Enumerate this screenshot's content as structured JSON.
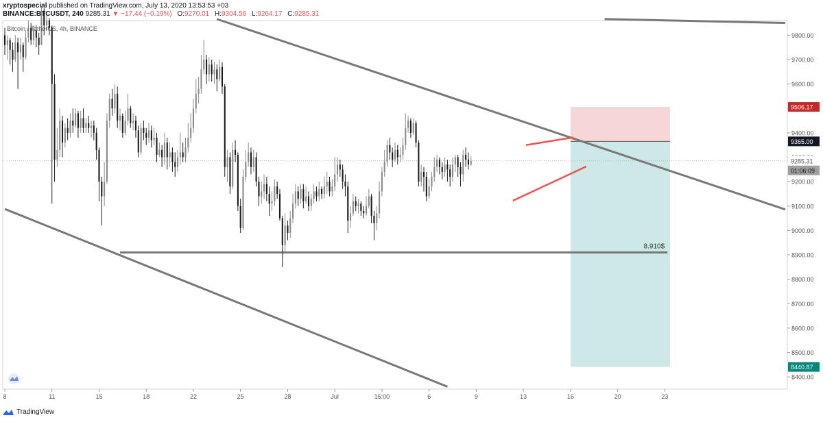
{
  "header": {
    "author": "xryptospecial",
    "published": "published on TradingView.com, July 13, 2020 13:53:53 +03",
    "symbol": "BINANCE:BTCUSDT, 240",
    "price": "9285.31",
    "change": "−17.44 (−0.19%)",
    "o_label": "O:",
    "o_value": "9270.01",
    "h_label": "H:",
    "h_value": "9304.56",
    "l_label": "L:",
    "l_value": "9264.17",
    "c_label": "C:",
    "c_value": "9285.31"
  },
  "footer": {
    "brand": "TradingView"
  },
  "colors": {
    "up": "#8a8a8a",
    "down": "#1c1c1c",
    "trendline": "#787878",
    "wedge": "#ef5350",
    "stop_zone": "#f7d6d8",
    "target_zone": "#cce9e8",
    "stop_badge": "#c62828",
    "target_badge": "#00897b",
    "current_badge": "#9e9e9e"
  },
  "chart_data": {
    "type": "candlestick",
    "title": "Bitcoin / TetherUS, 4h, BINANCE",
    "y_range": [
      8350,
      9860
    ],
    "y_ticks": [
      9800,
      9700,
      9600,
      9500,
      9400,
      9300,
      9200,
      9100,
      9000,
      8900,
      8800,
      8700,
      8600,
      8500,
      8400
    ],
    "y_tick_labels": [
      "9800.00",
      "9700.00",
      "9600.00",
      "9500.00",
      "9400.00",
      "9300.00",
      "9200.00",
      "9100.00",
      "9000.00",
      "8900.00",
      "8800.00",
      "8700.00",
      "8600.00",
      "8500.00",
      "8400.00"
    ],
    "x_tick_labels": [
      "8",
      "11",
      "15",
      "18",
      "22",
      "25",
      "28",
      "Jul",
      "15:00",
      "6",
      "9",
      "13",
      "16",
      "20",
      "23"
    ],
    "price_labels": {
      "stop": "9506.17",
      "entry": "9365.00",
      "current": "9285.31",
      "countdown": "01:06:09",
      "target": "8440.87",
      "support_label": "8.910$"
    },
    "levels": {
      "stop": 9506.17,
      "entry": 9365.0,
      "target": 8440.87,
      "support": 8910,
      "current": 9285.31
    },
    "candles": [
      {
        "o": 9800,
        "c": 9760,
        "h": 9830,
        "l": 9720
      },
      {
        "o": 9760,
        "c": 9780,
        "h": 9800,
        "l": 9700
      },
      {
        "o": 9780,
        "c": 9740,
        "h": 9790,
        "l": 9680
      },
      {
        "o": 9740,
        "c": 9700,
        "h": 9770,
        "l": 9650
      },
      {
        "o": 9700,
        "c": 9770,
        "h": 9800,
        "l": 9690
      },
      {
        "o": 9770,
        "c": 9730,
        "h": 9790,
        "l": 9580
      },
      {
        "o": 9730,
        "c": 9760,
        "h": 9790,
        "l": 9700
      },
      {
        "o": 9760,
        "c": 9710,
        "h": 9770,
        "l": 9650
      },
      {
        "o": 9710,
        "c": 9790,
        "h": 9820,
        "l": 9700
      },
      {
        "o": 9790,
        "c": 9830,
        "h": 9860,
        "l": 9770
      },
      {
        "o": 9830,
        "c": 9780,
        "h": 9850,
        "l": 9760
      },
      {
        "o": 9780,
        "c": 9820,
        "h": 9840,
        "l": 9760
      },
      {
        "o": 9820,
        "c": 9790,
        "h": 9840,
        "l": 9750
      },
      {
        "o": 9790,
        "c": 9760,
        "h": 9810,
        "l": 9720
      },
      {
        "o": 9760,
        "c": 9900,
        "h": 9920,
        "l": 9760
      },
      {
        "o": 9900,
        "c": 9840,
        "h": 9910,
        "l": 9800
      },
      {
        "o": 9840,
        "c": 9860,
        "h": 9880,
        "l": 9820
      },
      {
        "o": 9860,
        "c": 9830,
        "h": 9870,
        "l": 9800
      },
      {
        "o": 9830,
        "c": 9600,
        "h": 9840,
        "l": 9110
      },
      {
        "o": 9600,
        "c": 9290,
        "h": 9640,
        "l": 9200
      },
      {
        "o": 9290,
        "c": 9330,
        "h": 9420,
        "l": 9260
      },
      {
        "o": 9330,
        "c": 9450,
        "h": 9500,
        "l": 9300
      },
      {
        "o": 9450,
        "c": 9360,
        "h": 9470,
        "l": 9300
      },
      {
        "o": 9360,
        "c": 9420,
        "h": 9440,
        "l": 9340
      },
      {
        "o": 9420,
        "c": 9400,
        "h": 9460,
        "l": 9370
      },
      {
        "o": 9400,
        "c": 9450,
        "h": 9480,
        "l": 9380
      },
      {
        "o": 9450,
        "c": 9430,
        "h": 9500,
        "l": 9400
      },
      {
        "o": 9430,
        "c": 9480,
        "h": 9500,
        "l": 9420
      },
      {
        "o": 9480,
        "c": 9420,
        "h": 9490,
        "l": 9380
      },
      {
        "o": 9420,
        "c": 9460,
        "h": 9490,
        "l": 9400
      },
      {
        "o": 9460,
        "c": 9420,
        "h": 9500,
        "l": 9400
      },
      {
        "o": 9420,
        "c": 9440,
        "h": 9460,
        "l": 9400
      },
      {
        "o": 9440,
        "c": 9420,
        "h": 9470,
        "l": 9400
      },
      {
        "o": 9420,
        "c": 9430,
        "h": 9450,
        "l": 9380
      },
      {
        "o": 9430,
        "c": 9400,
        "h": 9450,
        "l": 9370
      },
      {
        "o": 9400,
        "c": 9330,
        "h": 9420,
        "l": 9290
      },
      {
        "o": 9330,
        "c": 9200,
        "h": 9340,
        "l": 9120
      },
      {
        "o": 9200,
        "c": 9140,
        "h": 9220,
        "l": 9020
      },
      {
        "o": 9140,
        "c": 9200,
        "h": 9280,
        "l": 9100
      },
      {
        "o": 9200,
        "c": 9450,
        "h": 9480,
        "l": 9190
      },
      {
        "o": 9450,
        "c": 9540,
        "h": 9560,
        "l": 9420
      },
      {
        "o": 9540,
        "c": 9500,
        "h": 9580,
        "l": 9470
      },
      {
        "o": 9500,
        "c": 9560,
        "h": 9600,
        "l": 9480
      },
      {
        "o": 9560,
        "c": 9450,
        "h": 9590,
        "l": 9420
      },
      {
        "o": 9450,
        "c": 9470,
        "h": 9500,
        "l": 9410
      },
      {
        "o": 9470,
        "c": 9400,
        "h": 9480,
        "l": 9380
      },
      {
        "o": 9400,
        "c": 9450,
        "h": 9490,
        "l": 9390
      },
      {
        "o": 9450,
        "c": 9500,
        "h": 9560,
        "l": 9430
      },
      {
        "o": 9500,
        "c": 9440,
        "h": 9510,
        "l": 9420
      },
      {
        "o": 9440,
        "c": 9450,
        "h": 9480,
        "l": 9410
      },
      {
        "o": 9450,
        "c": 9410,
        "h": 9470,
        "l": 9380
      },
      {
        "o": 9410,
        "c": 9320,
        "h": 9430,
        "l": 9300
      },
      {
        "o": 9320,
        "c": 9420,
        "h": 9440,
        "l": 9310
      },
      {
        "o": 9420,
        "c": 9400,
        "h": 9450,
        "l": 9370
      },
      {
        "o": 9400,
        "c": 9380,
        "h": 9420,
        "l": 9350
      },
      {
        "o": 9380,
        "c": 9410,
        "h": 9440,
        "l": 9360
      },
      {
        "o": 9410,
        "c": 9370,
        "h": 9430,
        "l": 9340
      },
      {
        "o": 9370,
        "c": 9380,
        "h": 9420,
        "l": 9350
      },
      {
        "o": 9380,
        "c": 9310,
        "h": 9400,
        "l": 9280
      },
      {
        "o": 9310,
        "c": 9330,
        "h": 9360,
        "l": 9300
      },
      {
        "o": 9330,
        "c": 9300,
        "h": 9350,
        "l": 9260
      },
      {
        "o": 9300,
        "c": 9360,
        "h": 9400,
        "l": 9270
      },
      {
        "o": 9360,
        "c": 9300,
        "h": 9380,
        "l": 9250
      },
      {
        "o": 9300,
        "c": 9320,
        "h": 9360,
        "l": 9260
      },
      {
        "o": 9320,
        "c": 9280,
        "h": 9340,
        "l": 9240
      },
      {
        "o": 9280,
        "c": 9260,
        "h": 9320,
        "l": 9220
      },
      {
        "o": 9260,
        "c": 9300,
        "h": 9330,
        "l": 9240
      },
      {
        "o": 9300,
        "c": 9320,
        "h": 9400,
        "l": 9270
      },
      {
        "o": 9320,
        "c": 9300,
        "h": 9360,
        "l": 9280
      },
      {
        "o": 9300,
        "c": 9340,
        "h": 9380,
        "l": 9280
      },
      {
        "o": 9340,
        "c": 9380,
        "h": 9440,
        "l": 9320
      },
      {
        "o": 9380,
        "c": 9420,
        "h": 9480,
        "l": 9360
      },
      {
        "o": 9420,
        "c": 9500,
        "h": 9540,
        "l": 9400
      },
      {
        "o": 9500,
        "c": 9560,
        "h": 9620,
        "l": 9480
      },
      {
        "o": 9560,
        "c": 9580,
        "h": 9630,
        "l": 9520
      },
      {
        "o": 9580,
        "c": 9660,
        "h": 9720,
        "l": 9560
      },
      {
        "o": 9660,
        "c": 9700,
        "h": 9780,
        "l": 9640
      },
      {
        "o": 9700,
        "c": 9640,
        "h": 9720,
        "l": 9600
      },
      {
        "o": 9640,
        "c": 9680,
        "h": 9710,
        "l": 9610
      },
      {
        "o": 9680,
        "c": 9640,
        "h": 9700,
        "l": 9610
      },
      {
        "o": 9640,
        "c": 9660,
        "h": 9690,
        "l": 9600
      },
      {
        "o": 9660,
        "c": 9620,
        "h": 9680,
        "l": 9570
      },
      {
        "o": 9620,
        "c": 9670,
        "h": 9700,
        "l": 9610
      },
      {
        "o": 9670,
        "c": 9590,
        "h": 9690,
        "l": 9560
      },
      {
        "o": 9590,
        "c": 9260,
        "h": 9600,
        "l": 9220
      },
      {
        "o": 9260,
        "c": 9300,
        "h": 9330,
        "l": 9200
      },
      {
        "o": 9300,
        "c": 9180,
        "h": 9320,
        "l": 9150
      },
      {
        "o": 9180,
        "c": 9330,
        "h": 9360,
        "l": 9170
      },
      {
        "o": 9330,
        "c": 9310,
        "h": 9370,
        "l": 9280
      },
      {
        "o": 9310,
        "c": 9100,
        "h": 9320,
        "l": 9080
      },
      {
        "o": 9100,
        "c": 9010,
        "h": 9130,
        "l": 8990
      },
      {
        "o": 9010,
        "c": 9220,
        "h": 9250,
        "l": 9000
      },
      {
        "o": 9220,
        "c": 9280,
        "h": 9330,
        "l": 9200
      },
      {
        "o": 9280,
        "c": 9320,
        "h": 9360,
        "l": 9260
      },
      {
        "o": 9320,
        "c": 9260,
        "h": 9340,
        "l": 9230
      },
      {
        "o": 9260,
        "c": 9300,
        "h": 9330,
        "l": 9240
      },
      {
        "o": 9300,
        "c": 9200,
        "h": 9320,
        "l": 9180
      },
      {
        "o": 9200,
        "c": 9140,
        "h": 9220,
        "l": 9100
      },
      {
        "o": 9140,
        "c": 9160,
        "h": 9200,
        "l": 9110
      },
      {
        "o": 9160,
        "c": 9190,
        "h": 9230,
        "l": 9130
      },
      {
        "o": 9190,
        "c": 9150,
        "h": 9220,
        "l": 9120
      },
      {
        "o": 9150,
        "c": 9110,
        "h": 9180,
        "l": 9060
      },
      {
        "o": 9110,
        "c": 9120,
        "h": 9160,
        "l": 9080
      },
      {
        "o": 9120,
        "c": 9180,
        "h": 9210,
        "l": 9100
      },
      {
        "o": 9180,
        "c": 9150,
        "h": 9200,
        "l": 9130
      },
      {
        "o": 9150,
        "c": 9050,
        "h": 9170,
        "l": 9040
      },
      {
        "o": 9050,
        "c": 8940,
        "h": 9060,
        "l": 8850
      },
      {
        "o": 8940,
        "c": 9020,
        "h": 9070,
        "l": 8910
      },
      {
        "o": 9020,
        "c": 8990,
        "h": 9040,
        "l": 8960
      },
      {
        "o": 8990,
        "c": 9050,
        "h": 9080,
        "l": 8970
      },
      {
        "o": 9050,
        "c": 9110,
        "h": 9150,
        "l": 9030
      },
      {
        "o": 9110,
        "c": 9160,
        "h": 9190,
        "l": 9090
      },
      {
        "o": 9160,
        "c": 9130,
        "h": 9180,
        "l": 9100
      },
      {
        "o": 9130,
        "c": 9170,
        "h": 9190,
        "l": 9110
      },
      {
        "o": 9170,
        "c": 9120,
        "h": 9190,
        "l": 9090
      },
      {
        "o": 9120,
        "c": 9140,
        "h": 9180,
        "l": 9110
      },
      {
        "o": 9140,
        "c": 9100,
        "h": 9160,
        "l": 9080
      },
      {
        "o": 9100,
        "c": 9130,
        "h": 9150,
        "l": 9080
      },
      {
        "o": 9130,
        "c": 9160,
        "h": 9190,
        "l": 9110
      },
      {
        "o": 9160,
        "c": 9140,
        "h": 9180,
        "l": 9120
      },
      {
        "o": 9140,
        "c": 9170,
        "h": 9200,
        "l": 9120
      },
      {
        "o": 9170,
        "c": 9150,
        "h": 9180,
        "l": 9130
      },
      {
        "o": 9150,
        "c": 9180,
        "h": 9220,
        "l": 9130
      },
      {
        "o": 9180,
        "c": 9200,
        "h": 9240,
        "l": 9150
      },
      {
        "o": 9200,
        "c": 9160,
        "h": 9220,
        "l": 9140
      },
      {
        "o": 9160,
        "c": 9180,
        "h": 9210,
        "l": 9140
      },
      {
        "o": 9180,
        "c": 9230,
        "h": 9300,
        "l": 9160
      },
      {
        "o": 9230,
        "c": 9270,
        "h": 9300,
        "l": 9200
      },
      {
        "o": 9270,
        "c": 9250,
        "h": 9290,
        "l": 9220
      },
      {
        "o": 9250,
        "c": 9200,
        "h": 9270,
        "l": 9170
      },
      {
        "o": 9200,
        "c": 9180,
        "h": 9230,
        "l": 9140
      },
      {
        "o": 9180,
        "c": 9040,
        "h": 9200,
        "l": 8990
      },
      {
        "o": 9040,
        "c": 9070,
        "h": 9100,
        "l": 9010
      },
      {
        "o": 9070,
        "c": 9120,
        "h": 9150,
        "l": 9060
      },
      {
        "o": 9120,
        "c": 9100,
        "h": 9140,
        "l": 9080
      },
      {
        "o": 9100,
        "c": 9110,
        "h": 9130,
        "l": 9070
      },
      {
        "o": 9110,
        "c": 9080,
        "h": 9120,
        "l": 9060
      },
      {
        "o": 9080,
        "c": 9070,
        "h": 9100,
        "l": 9050
      },
      {
        "o": 9070,
        "c": 9100,
        "h": 9140,
        "l": 9060
      },
      {
        "o": 9100,
        "c": 9140,
        "h": 9170,
        "l": 9090
      },
      {
        "o": 9140,
        "c": 9060,
        "h": 9150,
        "l": 9030
      },
      {
        "o": 9060,
        "c": 9030,
        "h": 9080,
        "l": 8960
      },
      {
        "o": 9030,
        "c": 9070,
        "h": 9100,
        "l": 9000
      },
      {
        "o": 9070,
        "c": 9160,
        "h": 9200,
        "l": 9050
      },
      {
        "o": 9160,
        "c": 9240,
        "h": 9260,
        "l": 9140
      },
      {
        "o": 9240,
        "c": 9280,
        "h": 9330,
        "l": 9220
      },
      {
        "o": 9280,
        "c": 9350,
        "h": 9370,
        "l": 9260
      },
      {
        "o": 9350,
        "c": 9320,
        "h": 9380,
        "l": 9290
      },
      {
        "o": 9320,
        "c": 9290,
        "h": 9340,
        "l": 9260
      },
      {
        "o": 9290,
        "c": 9330,
        "h": 9360,
        "l": 9280
      },
      {
        "o": 9330,
        "c": 9300,
        "h": 9350,
        "l": 9270
      },
      {
        "o": 9300,
        "c": 9310,
        "h": 9340,
        "l": 9280
      },
      {
        "o": 9310,
        "c": 9350,
        "h": 9380,
        "l": 9290
      },
      {
        "o": 9350,
        "c": 9420,
        "h": 9480,
        "l": 9330
      },
      {
        "o": 9420,
        "c": 9450,
        "h": 9470,
        "l": 9400
      },
      {
        "o": 9450,
        "c": 9400,
        "h": 9460,
        "l": 9380
      },
      {
        "o": 9400,
        "c": 9440,
        "h": 9460,
        "l": 9390
      },
      {
        "o": 9440,
        "c": 9360,
        "h": 9450,
        "l": 9340
      },
      {
        "o": 9360,
        "c": 9200,
        "h": 9370,
        "l": 9180
      },
      {
        "o": 9200,
        "c": 9240,
        "h": 9270,
        "l": 9180
      },
      {
        "o": 9240,
        "c": 9220,
        "h": 9260,
        "l": 9160
      },
      {
        "o": 9220,
        "c": 9140,
        "h": 9240,
        "l": 9120
      },
      {
        "o": 9140,
        "c": 9180,
        "h": 9210,
        "l": 9130
      },
      {
        "o": 9180,
        "c": 9220,
        "h": 9240,
        "l": 9160
      },
      {
        "o": 9220,
        "c": 9260,
        "h": 9300,
        "l": 9200
      },
      {
        "o": 9260,
        "c": 9290,
        "h": 9310,
        "l": 9240
      },
      {
        "o": 9290,
        "c": 9260,
        "h": 9300,
        "l": 9230
      },
      {
        "o": 9260,
        "c": 9240,
        "h": 9280,
        "l": 9210
      },
      {
        "o": 9240,
        "c": 9270,
        "h": 9300,
        "l": 9220
      },
      {
        "o": 9270,
        "c": 9250,
        "h": 9290,
        "l": 9200
      },
      {
        "o": 9250,
        "c": 9220,
        "h": 9270,
        "l": 9180
      },
      {
        "o": 9220,
        "c": 9270,
        "h": 9300,
        "l": 9200
      },
      {
        "o": 9270,
        "c": 9300,
        "h": 9310,
        "l": 9240
      },
      {
        "o": 9300,
        "c": 9260,
        "h": 9310,
        "l": 9220
      },
      {
        "o": 9260,
        "c": 9230,
        "h": 9280,
        "l": 9180
      },
      {
        "o": 9230,
        "c": 9310,
        "h": 9330,
        "l": 9200
      },
      {
        "o": 9310,
        "c": 9290,
        "h": 9340,
        "l": 9260
      },
      {
        "o": 9290,
        "c": 9270,
        "h": 9320,
        "l": 9250
      },
      {
        "o": 9270,
        "c": 9285.31,
        "h": 9304.56,
        "l": 9264.17
      }
    ],
    "x_index_range": [
      0,
      298
    ],
    "x_tick_index": [
      0,
      18,
      36,
      54,
      72,
      90,
      108,
      126,
      144,
      162,
      180,
      198,
      216,
      234,
      252
    ],
    "trendlines": [
      {
        "name": "upper-resistance-line",
        "p1": [
          81,
          9866
        ],
        "p2": [
          298,
          9086
        ]
      },
      {
        "name": "lower-support-channel-line",
        "p1": [
          0,
          9088
        ],
        "p2": [
          169,
          8360
        ]
      },
      {
        "name": "top-right-channel-line",
        "p1": [
          229,
          9866
        ],
        "p2": [
          298,
          9850
        ]
      }
    ],
    "wedge": [
      {
        "name": "wedge-upper-line",
        "p1": [
          199,
          9350
        ],
        "p2": [
          217,
          9381
        ]
      },
      {
        "name": "wedge-lower-line",
        "p1": [
          194,
          9122
        ],
        "p2": [
          222,
          9262
        ]
      }
    ],
    "support_segment": [
      44,
      253
    ],
    "position": {
      "start": 216,
      "end": 254
    }
  }
}
